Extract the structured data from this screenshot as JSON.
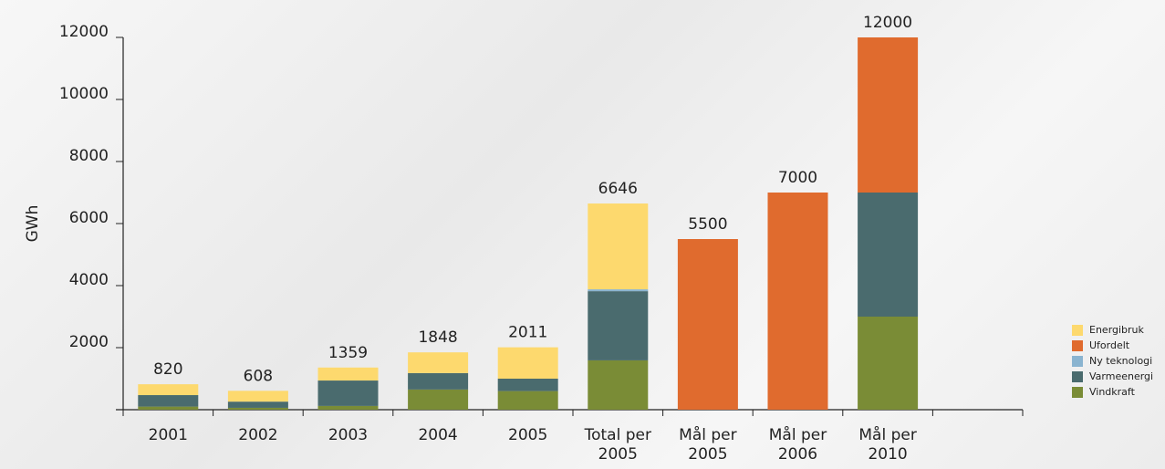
{
  "chart_data": {
    "type": "stacked_bar",
    "y_label": "GWh",
    "categories": [
      "2001",
      "2002",
      "2003",
      "2004",
      "2005",
      "Total per 2005",
      "Mål per 2005",
      "Mål per 2006",
      "Mål per 2010"
    ],
    "series": [
      {
        "name": "Vindkraft",
        "color": "#7a8c36",
        "values": [
          100,
          60,
          120,
          650,
          600,
          1590,
          null,
          null,
          3000
        ]
      },
      {
        "name": "Varmeenergi",
        "color": "#4a6b6e",
        "values": [
          370,
          200,
          820,
          530,
          400,
          2230,
          null,
          null,
          4000
        ]
      },
      {
        "name": "Ny teknologi",
        "color": "#8ab4d0",
        "values": [
          null,
          null,
          null,
          null,
          null,
          60,
          null,
          null,
          null
        ]
      },
      {
        "name": "Ufordelt",
        "color": "#e06b2e",
        "values": [
          null,
          null,
          null,
          null,
          null,
          null,
          5500,
          7000,
          5000
        ]
      },
      {
        "name": "Energibruk",
        "color": "#fdd96e",
        "values": [
          350,
          348,
          419,
          668,
          1011,
          2766,
          null,
          null,
          null
        ]
      }
    ],
    "totals": [
      820,
      608,
      1359,
      1848,
      2011,
      6646,
      5500,
      7000,
      12000
    ],
    "ylim": [
      0,
      12000
    ],
    "yticks": [
      2000,
      4000,
      6000,
      8000,
      10000,
      12000
    ],
    "grid": false,
    "legend": "lower right"
  }
}
